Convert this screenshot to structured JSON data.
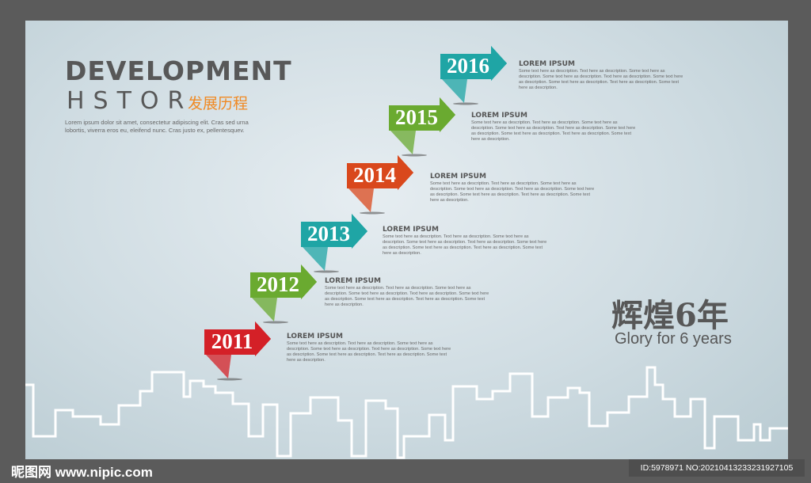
{
  "title_line1": "DEVELOPMENT",
  "title_line2": "HSTOR",
  "title_cn": "发展历程",
  "intro": "Lorem ipsum dolor sit amet, consectetur adipiscing elit. Cras sed urna lobortis, viverra eros eu, eleifend nunc. Cras justo ex, pellentesquev.",
  "milestones": [
    {
      "year": "2011",
      "color": "#d42027",
      "heading": "LOREM IPSUM",
      "text": "Some text here as description. Text here as description. Some text here as description. Some text here as description. Text here as description. Some text here as description. Some text here as description. Text here as description. Some text here as description."
    },
    {
      "year": "2012",
      "color": "#6aaa30",
      "heading": "LOREM IPSUM",
      "text": "Some text here as description. Text here as description. Some text here as description. Some text here as description. Text here as description. Some text here as description. Some text here as description. Text here as description. Some text here as description."
    },
    {
      "year": "2013",
      "color": "#1fa5a5",
      "heading": "LOREM IPSUM",
      "text": "Some text here as description. Text here as description. Some text here as description. Some text here as description. Text here as description. Some text here as description. Some text here as description. Text here as description. Some text here as description."
    },
    {
      "year": "2014",
      "color": "#d9481c",
      "heading": "LOREM IPSUM",
      "text": "Some text here as description. Text here as description. Some text here as description. Some text here as description. Text here as description. Some text here as description. Some text here as description. Text here as description. Some text here as description."
    },
    {
      "year": "2015",
      "color": "#6aaa30",
      "heading": "LOREM IPSUM",
      "text": "Some text here as description. Text here as description. Some text here as description. Some text here as description. Text here as description. Some text here as description. Some text here as description. Text here as description. Some text here as description."
    },
    {
      "year": "2016",
      "color": "#1fa5a5",
      "heading": "LOREM IPSUM",
      "text": "Some text here as description. Text here as description. Some text here as description. Some text here as description. Text here as description. Some text here as description. Some text here as description. Text here as description. Some text here as description."
    }
  ],
  "glory_cn": "辉煌6年",
  "glory_en": "Glory for 6 years",
  "watermark": "昵图网 www.nipic.com",
  "image_id": "ID:5978971 NO:20210413233231927105"
}
